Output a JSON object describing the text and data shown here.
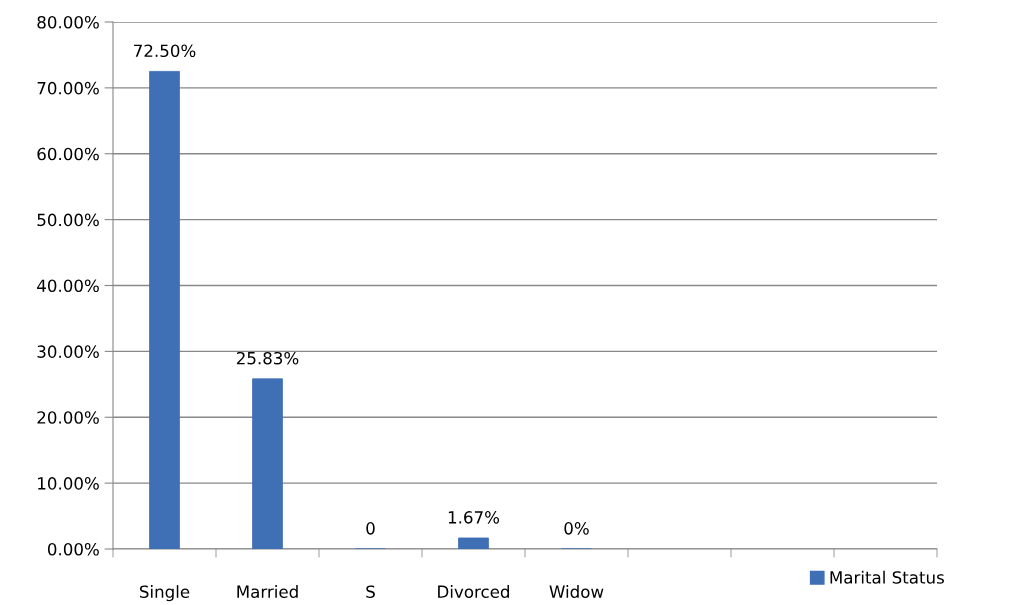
{
  "chart_data": {
    "type": "bar",
    "categories": [
      "Single",
      "Married",
      "S",
      "Divorced",
      "Widow",
      null,
      null,
      null
    ],
    "series": [
      {
        "name": "Marital Status",
        "color": "#3f6fb5",
        "values": [
          72.5,
          25.83,
          0,
          1.67,
          0,
          null,
          null,
          null
        ],
        "value_labels": [
          "72.50%",
          "25.83%",
          "0",
          "1.67%",
          "0%",
          null,
          null,
          null
        ]
      }
    ],
    "ylim": [
      0,
      80
    ],
    "yticks": [
      {
        "value": 0,
        "label": "0.00%"
      },
      {
        "value": 10,
        "label": "10.00%"
      },
      {
        "value": 20,
        "label": "20.00%"
      },
      {
        "value": 30,
        "label": "30.00%"
      },
      {
        "value": 40,
        "label": "40.00%"
      },
      {
        "value": 50,
        "label": "50.00%"
      },
      {
        "value": 60,
        "label": "60.00%"
      },
      {
        "value": 70,
        "label": "70.00%"
      },
      {
        "value": 80,
        "label": "80.00%"
      }
    ],
    "grid": "y",
    "legend": "bottom right"
  }
}
